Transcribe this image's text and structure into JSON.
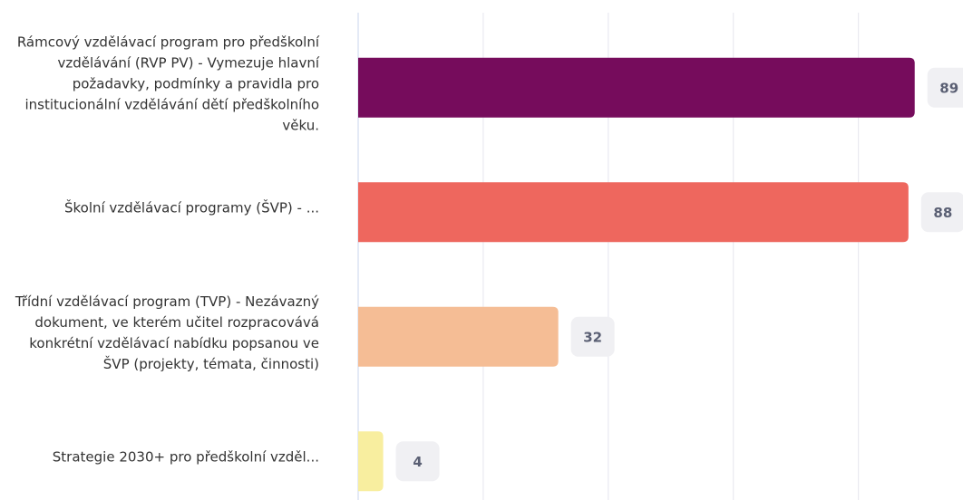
{
  "chart_data": {
    "type": "bar",
    "orientation": "horizontal",
    "categories": [
      "Rámcový vzdělávací program pro předškolní vzdělávání (RVP PV) - Vymezuje hlavní požadavky, podmínky a pravidla pro institucionální vzdělávání dětí předškolního věku.",
      "Školní vzdělávací programy (ŠVP) - ...",
      "Třídní vzdělávací program (TVP) - Nezávazný dokument, ve kterém učitel rozpracovává konkrétní vzdělávací nabídku popsanou ve ŠVP (projekty, témata, činnosti)",
      "Strategie 2030+ pro předškolní vzděl..."
    ],
    "values": [
      89,
      88,
      32,
      4
    ],
    "colors": [
      "#760c5c",
      "#ee675e",
      "#f5bd95",
      "#f8ee9f"
    ],
    "xlim": [
      0,
      96
    ],
    "xticks": [
      0,
      20,
      40,
      60,
      80
    ],
    "grid": true
  }
}
